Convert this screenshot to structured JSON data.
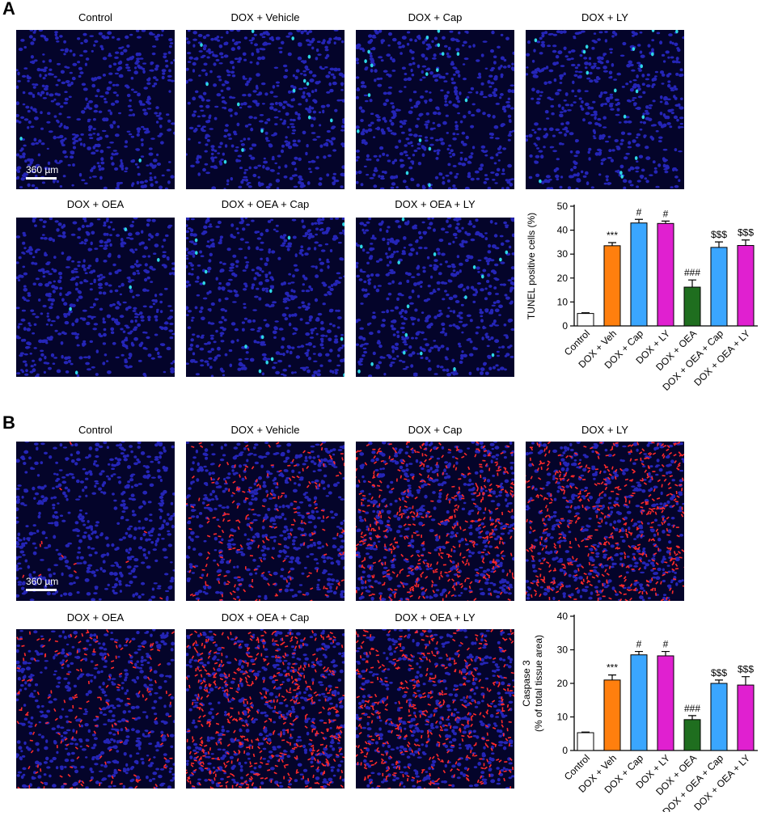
{
  "panels": [
    {
      "letter": "A",
      "scale_bar": "360 µm",
      "stain_color": "#2dd7e6",
      "nuclear_color": "#2b2bd0",
      "images": [
        {
          "title": "Control",
          "stain_level": 0.02
        },
        {
          "title": "DOX + Vehicle",
          "stain_level": 0.12
        },
        {
          "title": "DOX + Cap",
          "stain_level": 0.14
        },
        {
          "title": "DOX + LY",
          "stain_level": 0.14
        },
        {
          "title": "DOX + OEA",
          "stain_level": 0.04
        },
        {
          "title": "DOX + OEA + Cap",
          "stain_level": 0.12
        },
        {
          "title": "DOX + OEA + LY",
          "stain_level": 0.14
        }
      ]
    },
    {
      "letter": "B",
      "scale_bar": "360 µm",
      "stain_color": "#ff2a2a",
      "nuclear_color": "#2b2bd0",
      "images": [
        {
          "title": "Control",
          "stain_level": 0.02
        },
        {
          "title": "DOX + Vehicle",
          "stain_level": 0.35
        },
        {
          "title": "DOX + Cap",
          "stain_level": 0.8
        },
        {
          "title": "DOX + LY",
          "stain_level": 0.85
        },
        {
          "title": "DOX + OEA",
          "stain_level": 0.3
        },
        {
          "title": "DOX + OEA + Cap",
          "stain_level": 0.9
        },
        {
          "title": "DOX + OEA + LY",
          "stain_level": 0.75
        }
      ]
    }
  ],
  "chart_data": [
    {
      "type": "bar",
      "categories": [
        "Control",
        "DOX + Veh",
        "DOX + Cap",
        "DOX + LY",
        "DOX + OEA",
        "DOX + OEA + Cap",
        "DOX + OEA + LY"
      ],
      "values": [
        5.2,
        33.5,
        43,
        42.8,
        16.2,
        32.8,
        33.6
      ],
      "errors": [
        0.3,
        1.3,
        1.5,
        1.0,
        3.0,
        2.3,
        2.3
      ],
      "annotations": [
        "",
        "***",
        "#",
        "#",
        "###",
        "$$$",
        "$$$"
      ],
      "colors": [
        "#ffffff",
        "#ff7f0e",
        "#3aa6ff",
        "#e020d0",
        "#1f6e1f",
        "#3aa6ff",
        "#e020d0"
      ],
      "ylabel": [
        "TUNEL positive cells (%)"
      ],
      "ylim": [
        0,
        50
      ],
      "yticks": [
        0,
        10,
        20,
        30,
        40,
        50
      ]
    },
    {
      "type": "bar",
      "categories": [
        "Control",
        "DOX + Veh",
        "DOX + Cap",
        "DOX + LY",
        "DOX + OEA",
        "DOX + OEA + Cap",
        "DOX + OEA + LY"
      ],
      "values": [
        5.3,
        21,
        28.5,
        28.2,
        9.2,
        20,
        19.5
      ],
      "errors": [
        0.2,
        1.5,
        1.0,
        1.3,
        1.2,
        1.0,
        2.5
      ],
      "annotations": [
        "",
        "***",
        "#",
        "#",
        "###",
        "$$$",
        "$$$"
      ],
      "colors": [
        "#ffffff",
        "#ff7f0e",
        "#3aa6ff",
        "#e020d0",
        "#1f6e1f",
        "#3aa6ff",
        "#e020d0"
      ],
      "ylabel": [
        "Caspase 3",
        "(% of total tissue area)"
      ],
      "ylim": [
        0,
        40
      ],
      "yticks": [
        0,
        10,
        20,
        30,
        40
      ]
    }
  ]
}
